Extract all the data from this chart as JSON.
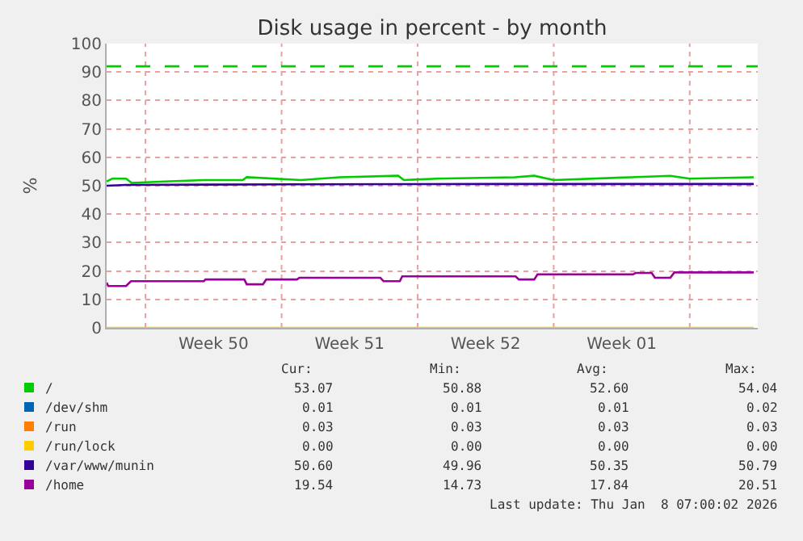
{
  "chart_data": {
    "type": "line",
    "title": "Disk usage in percent - by month",
    "ylabel": "%",
    "xlim": [
      "2025-12-06T00:00",
      "2026-01-08T12:00"
    ],
    "xticks": [
      {
        "value": "2025-12-08T00:00",
        "label": null
      },
      {
        "value": "2025-12-11T12:00",
        "label": "Week 50"
      },
      {
        "value": "2025-12-15T00:00",
        "label": null
      },
      {
        "value": "2025-12-18T12:00",
        "label": "Week 51"
      },
      {
        "value": "2025-12-22T00:00",
        "label": null
      },
      {
        "value": "2025-12-25T12:00",
        "label": "Week 52"
      },
      {
        "value": "2025-12-29T00:00",
        "label": null
      },
      {
        "value": "2026-01-01T12:00",
        "label": "Week 01"
      },
      {
        "value": "2026-01-05T00:00",
        "label": null
      }
    ],
    "ylim": [
      0,
      100
    ],
    "yticks": [
      0,
      10,
      20,
      30,
      40,
      50,
      60,
      70,
      80,
      90,
      100
    ],
    "grid": true,
    "legend": "bottom",
    "marker": "none",
    "line_style": "solid",
    "ref_lines": [
      {
        "axis": "y",
        "value": 92,
        "color": "#00cc00",
        "line_style": "dashed"
      }
    ],
    "series": [
      {
        "name": "/",
        "color": "#00cc00",
        "x": [
          "2025-12-06T00:00",
          "2025-12-06T07:00",
          "2025-12-07T00:00",
          "2025-12-07T07:00",
          "2025-12-09T00:00",
          "2025-12-11T00:00",
          "2025-12-13T00:00",
          "2025-12-13T05:00",
          "2025-12-16T00:00",
          "2025-12-18T00:00",
          "2025-12-21T00:00",
          "2025-12-21T07:00",
          "2025-12-23T00:00",
          "2025-12-27T00:00",
          "2025-12-28T00:00",
          "2025-12-29T00:00",
          "2026-01-02T00:00",
          "2026-01-04T00:00",
          "2026-01-05T00:00",
          "2026-01-08T07:00"
        ],
        "values": [
          51.5,
          52.5,
          52.5,
          51.0,
          51.5,
          52.0,
          52.0,
          53.0,
          52.0,
          53.0,
          53.5,
          52.0,
          52.5,
          53.0,
          53.5,
          52.0,
          53.0,
          53.5,
          52.5,
          53.0
        ]
      },
      {
        "name": "/dev/shm",
        "color": "#0066b3",
        "values": [
          null
        ]
      },
      {
        "name": "/run",
        "color": "#ff8000",
        "values": [
          null
        ]
      },
      {
        "name": "/run/lock",
        "color": "#ffcc00",
        "x": [
          "2025-12-06T00:00",
          "2026-01-08T07:00"
        ],
        "values": [
          0.0,
          0.0
        ]
      },
      {
        "name": "/var/www/munin",
        "color": "#330099",
        "x": [
          "2025-12-06T00:00",
          "2025-12-07T00:00",
          "2025-12-16T00:00",
          "2025-12-26T00:00",
          "2026-01-08T07:00"
        ],
        "values": [
          50.0,
          50.3,
          50.5,
          50.6,
          50.6
        ]
      },
      {
        "name": "/home",
        "color": "#990099",
        "x": [
          "2025-12-06T00:00",
          "2025-12-06T02:00",
          "2025-12-07T00:00",
          "2025-12-07T06:00",
          "2025-12-11T00:00",
          "2025-12-11T02:00",
          "2025-12-13T02:00",
          "2025-12-13T05:00",
          "2025-12-14T01:00",
          "2025-12-14T05:00",
          "2025-12-15T19:00",
          "2025-12-15T22:00",
          "2025-12-20T02:00",
          "2025-12-20T06:00",
          "2025-12-21T02:00",
          "2025-12-21T05:00",
          "2025-12-27T01:00",
          "2025-12-27T05:00",
          "2025-12-28T00:00",
          "2025-12-28T04:00",
          "2026-01-02T02:00",
          "2026-01-02T05:00",
          "2026-01-03T01:00",
          "2026-01-03T05:00",
          "2026-01-04T00:00",
          "2026-01-04T05:00",
          "2026-01-08T07:00"
        ],
        "values": [
          15.9,
          14.7,
          14.7,
          16.4,
          16.4,
          17.0,
          17.0,
          15.3,
          15.3,
          17.0,
          17.0,
          17.6,
          17.6,
          16.4,
          16.4,
          18.1,
          18.1,
          17.0,
          17.0,
          18.8,
          18.8,
          19.3,
          19.3,
          17.6,
          17.6,
          19.5,
          19.5
        ]
      }
    ],
    "annotations": [
      "Cur:",
      "Min:",
      "Avg:",
      "Max:",
      "53.07",
      "50.88",
      "52.60",
      "54.04",
      "0.01",
      "0.01",
      "0.01",
      "0.02",
      "0.03",
      "0.03",
      "0.03",
      "0.03",
      "0.00",
      "0.00",
      "0.00",
      "0.00",
      "50.60",
      "49.96",
      "50.35",
      "50.79",
      "19.54",
      "14.73",
      "17.84",
      "20.51",
      "Last update: Thu Jan  8 07:00:02 2026"
    ]
  }
}
